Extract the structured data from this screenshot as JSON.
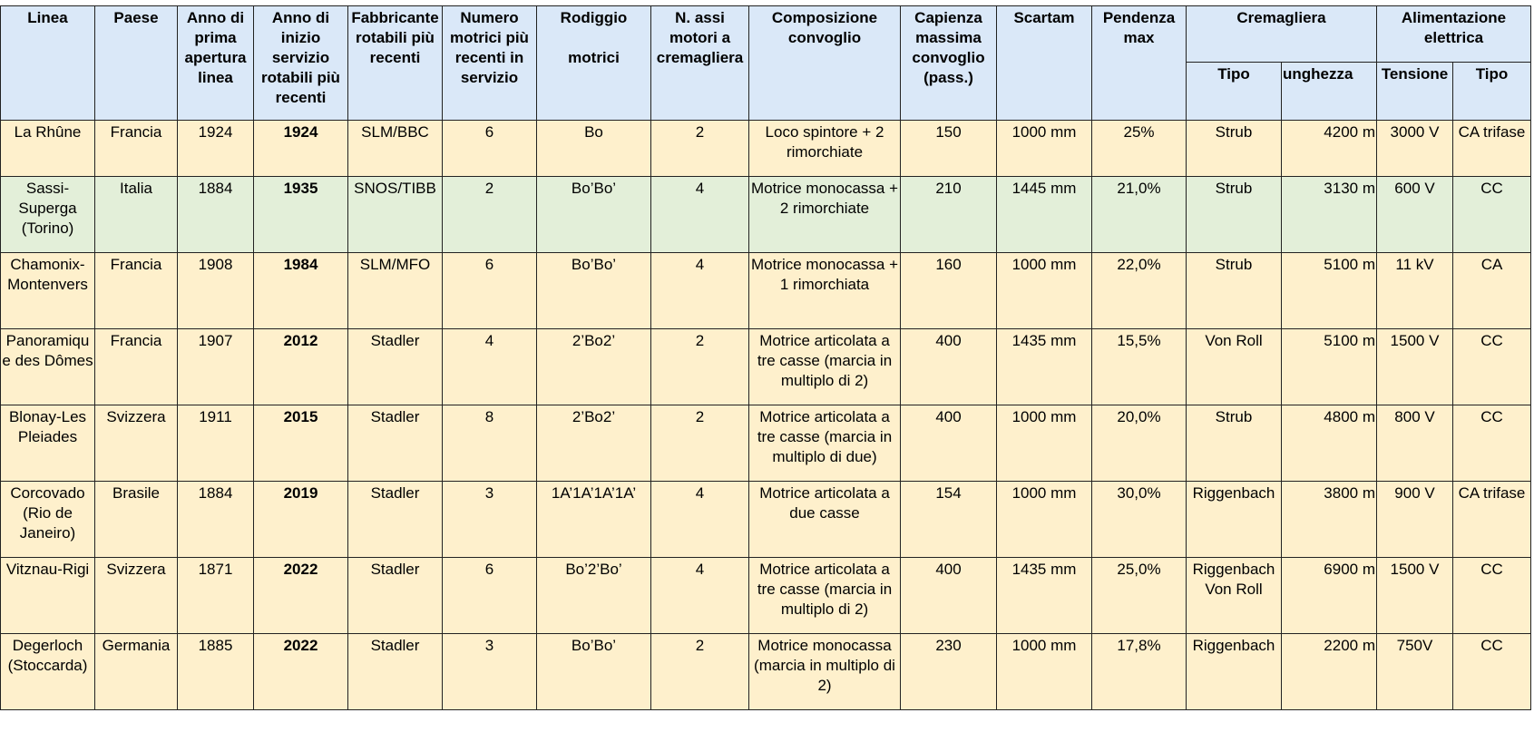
{
  "headers": {
    "linea": "Linea",
    "paese": "Paese",
    "anno_apertura": "Anno di prima apertura linea",
    "anno_servizio": "Anno di inizio servizio rotabili più recenti",
    "fabbricante": "Fabbricante rotabili più recenti",
    "numero_motrici": "Numero motrici più recenti in servizio",
    "rodiggio": "Rodiggio\n\nmotrici",
    "assi": "N. assi motori a cremagliera",
    "composizione": "Composizione convoglio",
    "capienza": "Capienza massima convoglio (pass.)",
    "scartam": "Scartam",
    "pendenza": "Pendenza max",
    "cremagliera": "Cremagliera",
    "cremagliera_tipo": "Tipo",
    "cremagliera_lunghezza": "unghezza",
    "alimentazione": "Alimentazione elettrica",
    "alimentazione_tensione": "Tensione",
    "alimentazione_tipo": "Tipo"
  },
  "rows": [
    {
      "linea": "La Rhûne",
      "paese": "Francia",
      "apertura": "1924",
      "servizio": "1924",
      "fabbricante": "SLM/BBC",
      "motrici": "6",
      "rodiggio": "Bo",
      "assi": "2",
      "composizione": "Loco spintore + 2 rimorchiate",
      "capienza": "150",
      "scartamento": "1000 mm",
      "pendenza": "25%",
      "crem_tipo": "Strub",
      "lunghezza": "4200 m",
      "tensione": "3000 V",
      "alim_tipo": "CA trifase",
      "highlight": false
    },
    {
      "linea": "Sassi-Superga (Torino)",
      "paese": "Italia",
      "apertura": "1884",
      "servizio": "1935",
      "fabbricante": "SNOS/TIBB",
      "motrici": "2",
      "rodiggio": "Bo’Bo’",
      "assi": "4",
      "composizione": "Motrice monocassa + 2 rimorchiate",
      "capienza": "210",
      "scartamento": "1445 mm",
      "pendenza": "21,0%",
      "crem_tipo": "Strub",
      "lunghezza": "3130 m",
      "tensione": "600 V",
      "alim_tipo": "CC",
      "highlight": true
    },
    {
      "linea": "Chamonix-Montenvers",
      "paese": "Francia",
      "apertura": "1908",
      "servizio": "1984",
      "fabbricante": "SLM/MFO",
      "motrici": "6",
      "rodiggio": "Bo’Bo’",
      "assi": "4",
      "composizione": "Motrice monocassa + 1 rimorchiata",
      "capienza": "160",
      "scartamento": "1000 mm",
      "pendenza": "22,0%",
      "crem_tipo": "Strub",
      "lunghezza": "5100 m",
      "tensione": "11 kV",
      "alim_tipo": "CA",
      "highlight": false
    },
    {
      "linea": "Panoramique des Dômes",
      "paese": "Francia",
      "apertura": "1907",
      "servizio": "2012",
      "fabbricante": "Stadler",
      "motrici": "4",
      "rodiggio": "2’Bo2’",
      "assi": "2",
      "composizione": "Motrice articolata a tre casse (marcia in multiplo di 2)",
      "capienza": "400",
      "scartamento": "1435 mm",
      "pendenza": "15,5%",
      "crem_tipo": "Von Roll",
      "lunghezza": "5100 m",
      "tensione": "1500 V",
      "alim_tipo": "CC",
      "highlight": false
    },
    {
      "linea": "Blonay-Les Pleiades",
      "paese": "Svizzera",
      "apertura": "1911",
      "servizio": "2015",
      "fabbricante": "Stadler",
      "motrici": "8",
      "rodiggio": "2’Bo2’",
      "assi": "2",
      "composizione": "Motrice articolata a tre casse (marcia in multiplo di due)",
      "capienza": "400",
      "scartamento": "1000 mm",
      "pendenza": "20,0%",
      "crem_tipo": "Strub",
      "lunghezza": "4800 m",
      "tensione": "800 V",
      "alim_tipo": "CC",
      "highlight": false
    },
    {
      "linea": "Corcovado (Rio de Janeiro)",
      "paese": "Brasile",
      "apertura": "1884",
      "servizio": "2019",
      "fabbricante": "Stadler",
      "motrici": "3",
      "rodiggio": "1A’1A’1A’1A’",
      "assi": "4",
      "composizione": "Motrice articolata a due casse",
      "capienza": "154",
      "scartamento": "1000 mm",
      "pendenza": "30,0%",
      "crem_tipo": "Riggenbach",
      "lunghezza": "3800 m",
      "tensione": "900 V",
      "alim_tipo": "CA trifase",
      "highlight": false
    },
    {
      "linea": "Vitznau-Rigi",
      "paese": "Svizzera",
      "apertura": "1871",
      "servizio": "2022",
      "fabbricante": "Stadler",
      "motrici": "6",
      "rodiggio": "Bo’2’Bo’",
      "assi": "4",
      "composizione": "Motrice articolata a tre casse (marcia in multiplo di 2)",
      "capienza": "400",
      "scartamento": "1435 mm",
      "pendenza": "25,0%",
      "crem_tipo": "Riggenbach Von Roll",
      "lunghezza": "6900 m",
      "tensione": "1500 V",
      "alim_tipo": "CC",
      "highlight": false
    },
    {
      "linea": "Degerloch (Stoccarda)",
      "paese": "Germania",
      "apertura": "1885",
      "servizio": "2022",
      "fabbricante": "Stadler",
      "motrici": "3",
      "rodiggio": "Bo’Bo’",
      "assi": "2",
      "composizione": "Motrice monocassa (marcia in multiplo di 2)",
      "capienza": "230",
      "scartamento": "1000 mm",
      "pendenza": "17,8%",
      "crem_tipo": "Riggenbach",
      "lunghezza": "2200 m",
      "tensione": "750V",
      "alim_tipo": "CC",
      "highlight": false
    }
  ],
  "colors": {
    "header_bg": "#dae8f8",
    "row_bg": "#fef0cc",
    "highlight_bg": "#e3efd9",
    "border": "#222222"
  }
}
